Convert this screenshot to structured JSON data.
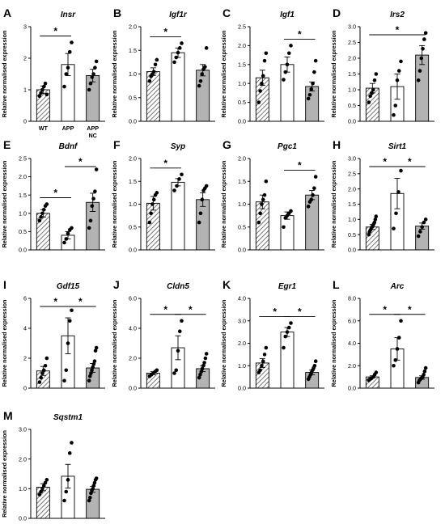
{
  "groups": [
    "WT",
    "APP",
    "APP NC"
  ],
  "group_tick_lines": [
    [
      "WT"
    ],
    [
      "APP"
    ],
    [
      "APP",
      "NC"
    ]
  ],
  "ylabel": "Relative normalised expression",
  "sig_marker": "*",
  "colors": {
    "wt_hatch": "#555555",
    "app_fill": "#ffffff",
    "nc_fill": "#b3b3b3",
    "ink": "#000000"
  },
  "chart_data": [
    {
      "type": "bar",
      "panel": "A",
      "title": "Insr",
      "categories": [
        "WT",
        "APP",
        "APP NC"
      ],
      "values": [
        1.0,
        1.8,
        1.45
      ],
      "errors": [
        0.12,
        0.35,
        0.2
      ],
      "ylim": [
        0,
        3
      ],
      "yticks": [
        0,
        1,
        2,
        3
      ],
      "yticklabels": [
        "0",
        "1",
        "2",
        "3"
      ],
      "show_xticklabels": true,
      "points": [
        [
          0.8,
          0.9,
          1.0,
          1.1,
          1.2,
          0.85
        ],
        [
          1.1,
          1.5,
          1.7,
          2.2,
          2.5
        ],
        [
          1.0,
          1.2,
          1.4,
          1.5,
          1.7,
          1.9
        ]
      ],
      "sig": [
        [
          0,
          1
        ]
      ]
    },
    {
      "type": "bar",
      "panel": "B",
      "title": "Igf1r",
      "categories": [
        "WT",
        "APP",
        "APP NC"
      ],
      "values": [
        1.05,
        1.45,
        1.08
      ],
      "errors": [
        0.08,
        0.1,
        0.12
      ],
      "ylim": [
        0,
        2
      ],
      "yticks": [
        0,
        0.5,
        1,
        1.5,
        2
      ],
      "yticklabels": [
        "0.0",
        "0.5",
        "1.0",
        "1.5",
        "2.0"
      ],
      "show_xticklabels": false,
      "points": [
        [
          0.85,
          0.95,
          1.0,
          1.05,
          1.2,
          1.3
        ],
        [
          1.25,
          1.35,
          1.45,
          1.55,
          1.65
        ],
        [
          0.75,
          0.85,
          1.0,
          1.1,
          1.15,
          1.55
        ]
      ],
      "sig": [
        [
          0,
          1
        ]
      ]
    },
    {
      "type": "bar",
      "panel": "C",
      "title": "Igf1",
      "categories": [
        "WT",
        "APP",
        "APP NC"
      ],
      "values": [
        1.15,
        1.5,
        0.92
      ],
      "errors": [
        0.2,
        0.2,
        0.12
      ],
      "ylim": [
        0,
        2.5
      ],
      "yticks": [
        0,
        0.5,
        1,
        1.5,
        2,
        2.5
      ],
      "yticklabels": [
        "0.0",
        "0.5",
        "1.0",
        "1.5",
        "2.0",
        "2.5"
      ],
      "show_xticklabels": false,
      "points": [
        [
          0.5,
          0.8,
          1.0,
          1.2,
          1.6,
          1.8
        ],
        [
          1.1,
          1.3,
          1.5,
          1.8,
          2.0
        ],
        [
          0.6,
          0.7,
          0.85,
          1.0,
          1.3,
          1.6
        ]
      ],
      "sig": [
        [
          1,
          2
        ]
      ]
    },
    {
      "type": "bar",
      "panel": "D",
      "title": "Irs2",
      "categories": [
        "WT",
        "APP",
        "APP NC"
      ],
      "values": [
        1.05,
        1.1,
        2.1
      ],
      "errors": [
        0.15,
        0.4,
        0.3
      ],
      "ylim": [
        0,
        3
      ],
      "yticks": [
        0,
        0.5,
        1,
        1.5,
        2,
        2.5,
        3
      ],
      "yticklabels": [
        "0.0",
        "0.5",
        "1.0",
        "1.5",
        "2.0",
        "2.5",
        "3.0"
      ],
      "show_xticklabels": false,
      "points": [
        [
          0.6,
          0.8,
          0.9,
          1.0,
          1.3,
          1.5
        ],
        [
          0.2,
          0.5,
          1.3,
          1.6,
          1.9
        ],
        [
          1.3,
          1.6,
          2.0,
          2.3,
          2.6,
          2.8
        ]
      ],
      "sig": [
        [
          0,
          2
        ]
      ]
    },
    {
      "type": "bar",
      "panel": "E",
      "title": "Bdnf",
      "categories": [
        "WT",
        "APP",
        "APP NC"
      ],
      "values": [
        1.0,
        0.4,
        1.3
      ],
      "errors": [
        0.1,
        0.1,
        0.25
      ],
      "ylim": [
        0,
        2.5
      ],
      "yticks": [
        0,
        0.5,
        1,
        1.5,
        2,
        2.5
      ],
      "yticklabels": [
        "0.0",
        "0.5",
        "1.0",
        "1.5",
        "2.0",
        "2.5"
      ],
      "show_xticklabels": false,
      "points": [
        [
          0.8,
          0.9,
          1.0,
          1.1,
          1.2,
          1.25
        ],
        [
          0.2,
          0.3,
          0.45,
          0.55,
          0.6
        ],
        [
          0.6,
          0.8,
          1.2,
          1.4,
          1.6,
          2.2
        ]
      ],
      "sig": [
        [
          0,
          1
        ],
        [
          1,
          2
        ]
      ]
    },
    {
      "type": "bar",
      "panel": "F",
      "title": "Syp",
      "categories": [
        "WT",
        "APP",
        "APP NC"
      ],
      "values": [
        1.02,
        1.48,
        1.1
      ],
      "errors": [
        0.15,
        0.08,
        0.15
      ],
      "ylim": [
        0,
        2
      ],
      "yticks": [
        0,
        0.5,
        1,
        1.5,
        2
      ],
      "yticklabels": [
        "0.0",
        "0.5",
        "1.0",
        "1.5",
        "2.0"
      ],
      "show_xticklabels": false,
      "points": [
        [
          0.6,
          0.8,
          1.0,
          1.1,
          1.2,
          1.25
        ],
        [
          1.3,
          1.4,
          1.55,
          1.65
        ],
        [
          0.6,
          0.8,
          1.1,
          1.3,
          1.35,
          1.4
        ]
      ],
      "sig": [
        [
          0,
          1
        ]
      ]
    },
    {
      "type": "bar",
      "panel": "G",
      "title": "Pgc1",
      "categories": [
        "WT",
        "APP",
        "APP NC"
      ],
      "values": [
        1.05,
        0.75,
        1.2
      ],
      "errors": [
        0.15,
        0.08,
        0.1
      ],
      "ylim": [
        0,
        2
      ],
      "yticks": [
        0,
        0.5,
        1,
        1.5,
        2
      ],
      "yticklabels": [
        "0.0",
        "0.5",
        "1.0",
        "1.5",
        "2.0"
      ],
      "show_xticklabels": false,
      "points": [
        [
          0.6,
          0.8,
          1.0,
          1.1,
          1.2,
          1.5
        ],
        [
          0.5,
          0.7,
          0.75,
          0.8,
          0.85
        ],
        [
          0.95,
          1.05,
          1.1,
          1.2,
          1.35,
          1.6
        ]
      ],
      "sig": [
        [
          1,
          2
        ]
      ]
    },
    {
      "type": "bar",
      "panel": "H",
      "title": "Sirt1",
      "categories": [
        "WT",
        "APP",
        "APP NC"
      ],
      "values": [
        0.75,
        1.85,
        0.78
      ],
      "errors": [
        0.08,
        0.5,
        0.1
      ],
      "ylim": [
        0,
        3
      ],
      "yticks": [
        0,
        0.5,
        1,
        1.5,
        2,
        2.5,
        3
      ],
      "yticklabels": [
        "0.0",
        "0.5",
        "1.0",
        "1.5",
        "2.0",
        "2.5",
        "3.0"
      ],
      "show_xticklabels": false,
      "points": [
        [
          0.5,
          0.6,
          0.65,
          0.7,
          0.75,
          0.8,
          0.85,
          0.9,
          1.0,
          1.1
        ],
        [
          0.7,
          1.2,
          1.9,
          2.6
        ],
        [
          0.45,
          0.6,
          0.75,
          0.9,
          1.0
        ]
      ],
      "sig": [
        [
          0,
          1
        ],
        [
          1,
          2
        ]
      ]
    },
    {
      "type": "bar",
      "panel": "I",
      "title": "Gdf15",
      "categories": [
        "WT",
        "APP",
        "APP NC"
      ],
      "values": [
        1.15,
        3.5,
        1.35
      ],
      "errors": [
        0.3,
        1.2,
        0.3
      ],
      "ylim": [
        0,
        6
      ],
      "yticks": [
        0,
        2,
        4,
        6
      ],
      "yticklabels": [
        "0",
        "2",
        "4",
        "6"
      ],
      "show_xticklabels": false,
      "points": [
        [
          0.4,
          0.7,
          1.0,
          1.2,
          1.5,
          2.0
        ],
        [
          0.5,
          1.2,
          3.0,
          4.5,
          5.2
        ],
        [
          0.5,
          0.8,
          1.0,
          1.2,
          1.4,
          1.6,
          1.8,
          2.5,
          2.7
        ]
      ],
      "sig": [
        [
          0,
          1
        ],
        [
          1,
          2
        ]
      ]
    },
    {
      "type": "bar",
      "panel": "J",
      "title": "Cldn5",
      "categories": [
        "WT",
        "APP",
        "APP NC"
      ],
      "values": [
        1.0,
        2.7,
        1.3
      ],
      "errors": [
        0.1,
        0.8,
        0.2
      ],
      "ylim": [
        0,
        6
      ],
      "yticks": [
        0,
        2,
        4,
        6
      ],
      "yticklabels": [
        "0.0",
        "2.0",
        "4.0",
        "6.0"
      ],
      "show_xticklabels": false,
      "points": [
        [
          0.8,
          0.9,
          1.0,
          1.1,
          1.2
        ],
        [
          1.0,
          1.2,
          2.5,
          3.8,
          4.5
        ],
        [
          0.7,
          0.9,
          1.1,
          1.3,
          1.5,
          1.7,
          2.0,
          2.3
        ]
      ],
      "sig": [
        [
          0,
          1
        ],
        [
          1,
          2
        ]
      ]
    },
    {
      "type": "bar",
      "panel": "K",
      "title": "Egr1",
      "categories": [
        "WT",
        "APP",
        "APP NC"
      ],
      "values": [
        1.12,
        2.5,
        0.7
      ],
      "errors": [
        0.2,
        0.2,
        0.1
      ],
      "ylim": [
        0,
        4
      ],
      "yticks": [
        0,
        1,
        2,
        3,
        4
      ],
      "yticklabels": [
        "0.0",
        "1.0",
        "2.0",
        "3.0",
        "4.0"
      ],
      "show_xticklabels": false,
      "points": [
        [
          0.7,
          0.8,
          1.0,
          1.2,
          1.5,
          1.8
        ],
        [
          1.8,
          2.3,
          2.5,
          2.7,
          2.9
        ],
        [
          0.4,
          0.5,
          0.6,
          0.7,
          0.8,
          0.9,
          1.0,
          1.2
        ]
      ],
      "sig": [
        [
          0,
          1
        ],
        [
          1,
          2
        ]
      ]
    },
    {
      "type": "bar",
      "panel": "L",
      "title": "Arc",
      "categories": [
        "WT",
        "APP",
        "APP NC"
      ],
      "values": [
        1.0,
        3.5,
        0.95
      ],
      "errors": [
        0.1,
        1.0,
        0.15
      ],
      "ylim": [
        0,
        8
      ],
      "yticks": [
        0,
        2,
        4,
        6,
        8
      ],
      "yticklabels": [
        "0.0",
        "2.0",
        "4.0",
        "6.0",
        "8.0"
      ],
      "show_xticklabels": false,
      "points": [
        [
          0.7,
          0.8,
          0.9,
          1.0,
          1.2,
          1.4
        ],
        [
          2.0,
          2.5,
          3.5,
          4.5,
          6.0
        ],
        [
          0.5,
          0.7,
          0.8,
          0.9,
          1.0,
          1.2,
          1.5,
          1.8
        ]
      ],
      "sig": [
        [
          0,
          1
        ],
        [
          1,
          2
        ]
      ]
    },
    {
      "type": "bar",
      "panel": "M",
      "title": "Sqstm1",
      "categories": [
        "WT",
        "APP",
        "APP NC"
      ],
      "values": [
        1.05,
        1.42,
        0.98
      ],
      "errors": [
        0.12,
        0.4,
        0.1
      ],
      "ylim": [
        0,
        3
      ],
      "yticks": [
        0,
        1,
        2,
        3
      ],
      "yticklabels": [
        "0.0",
        "1.0",
        "2.0",
        "3.0"
      ],
      "show_xticklabels": false,
      "points": [
        [
          0.8,
          0.9,
          1.0,
          1.1,
          1.2,
          1.3
        ],
        [
          0.6,
          0.9,
          1.3,
          2.2,
          2.55
        ],
        [
          0.6,
          0.7,
          0.85,
          0.95,
          1.0,
          1.1,
          1.2,
          1.3,
          1.35
        ]
      ],
      "sig": []
    }
  ]
}
